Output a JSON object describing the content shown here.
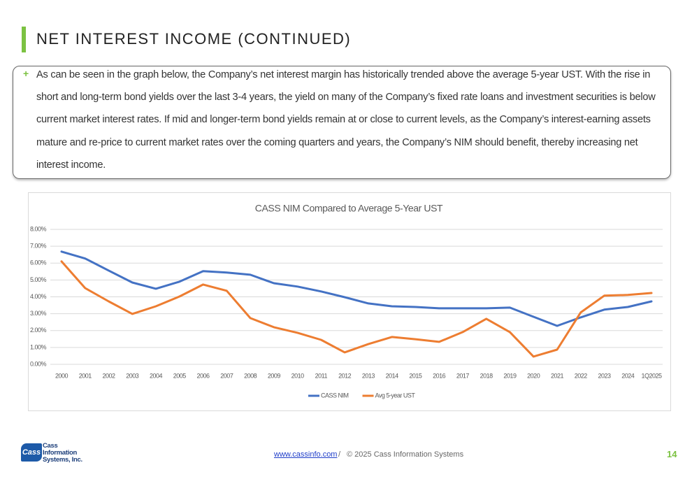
{
  "header": {
    "title": "NET INTEREST INCOME (CONTINUED)"
  },
  "body": {
    "bullet": "+",
    "text": "As can be seen in the graph below, the Company’s net interest margin has historically trended above the average 5-year UST. With the rise in short and long-term bond yields over the last 3-4 years, the yield on many of the Company’s fixed rate loans and investment securities is below current market interest rates. If mid and longer-term bond yields remain at or close to current levels, as the Company’s interest-earning assets mature and re-price to current market rates over the coming quarters and years, the Company’s NIM should benefit, thereby increasing net interest income."
  },
  "chart_data": {
    "type": "line",
    "title": "CASS NIM Compared to Average 5-Year UST",
    "categories": [
      "2000",
      "2001",
      "2002",
      "2003",
      "2004",
      "2005",
      "2006",
      "2007",
      "2008",
      "2009",
      "2010",
      "2011",
      "2012",
      "2013",
      "2014",
      "2015",
      "2016",
      "2017",
      "2018",
      "2019",
      "2020",
      "2021",
      "2022",
      "2023",
      "2024",
      "1Q2025"
    ],
    "series": [
      {
        "name": "CASS NIM",
        "color": "#4472c4",
        "values": [
          6.68,
          6.27,
          5.56,
          4.85,
          4.48,
          4.9,
          5.52,
          5.44,
          5.31,
          4.81,
          4.61,
          4.32,
          3.98,
          3.61,
          3.44,
          3.4,
          3.32,
          3.32,
          3.32,
          3.36,
          2.82,
          2.28,
          2.78,
          3.24,
          3.4,
          3.73
        ]
      },
      {
        "name": "Avg 5-year UST",
        "color": "#ed7d31",
        "values": [
          6.1,
          4.52,
          3.73,
          2.99,
          3.44,
          4.02,
          4.73,
          4.36,
          2.74,
          2.2,
          1.87,
          1.45,
          0.71,
          1.2,
          1.62,
          1.49,
          1.33,
          1.91,
          2.7,
          1.91,
          0.46,
          0.87,
          3.07,
          4.07,
          4.11,
          4.23
        ]
      }
    ],
    "ylim": [
      0,
      8
    ],
    "yticks": [
      {
        "value": 0,
        "label": "0.00%"
      },
      {
        "value": 1,
        "label": "1.00%"
      },
      {
        "value": 2,
        "label": "2.00%"
      },
      {
        "value": 3,
        "label": "3.00%"
      },
      {
        "value": 4,
        "label": "4.00%"
      },
      {
        "value": 5,
        "label": "5.00%"
      },
      {
        "value": 6,
        "label": "6.00%"
      },
      {
        "value": 7,
        "label": "7.00%"
      },
      {
        "value": 8,
        "label": "8.00%"
      }
    ],
    "grid": true,
    "legend": "bottom"
  },
  "footer": {
    "link": "www.cassinfo.com",
    "separator": "/",
    "copyright": "© 2025 Cass Information Systems",
    "page": "14",
    "logo_mark": "Cass",
    "logo_lines": [
      "Cass",
      "Information",
      "Systems, Inc."
    ]
  }
}
